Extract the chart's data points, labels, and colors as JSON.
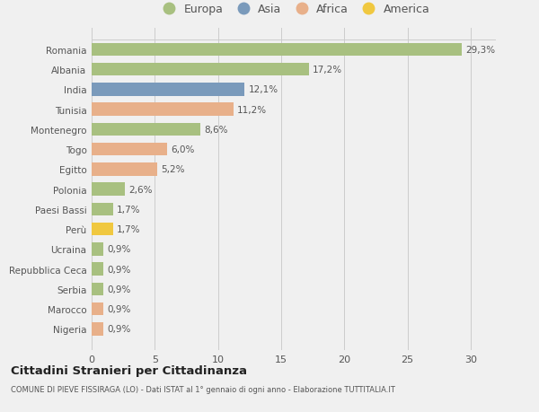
{
  "countries": [
    "Romania",
    "Albania",
    "India",
    "Tunisia",
    "Montenegro",
    "Togo",
    "Egitto",
    "Polonia",
    "Paesi Bassi",
    "Perù",
    "Ucraina",
    "Repubblica Ceca",
    "Serbia",
    "Marocco",
    "Nigeria"
  ],
  "values": [
    29.3,
    17.2,
    12.1,
    11.2,
    8.6,
    6.0,
    5.2,
    2.6,
    1.7,
    1.7,
    0.9,
    0.9,
    0.9,
    0.9,
    0.9
  ],
  "labels": [
    "29,3%",
    "17,2%",
    "12,1%",
    "11,2%",
    "8,6%",
    "6,0%",
    "5,2%",
    "2,6%",
    "1,7%",
    "1,7%",
    "0,9%",
    "0,9%",
    "0,9%",
    "0,9%",
    "0,9%"
  ],
  "colors": [
    "#a8c080",
    "#a8c080",
    "#7a9abb",
    "#e8b08a",
    "#a8c080",
    "#e8b08a",
    "#e8b08a",
    "#a8c080",
    "#a8c080",
    "#f0c840",
    "#a8c080",
    "#a8c080",
    "#a8c080",
    "#e8b08a",
    "#e8b08a"
  ],
  "legend_labels": [
    "Europa",
    "Asia",
    "Africa",
    "America"
  ],
  "legend_colors": [
    "#a8c080",
    "#7a9abb",
    "#e8b08a",
    "#f0c840"
  ],
  "title": "Cittadini Stranieri per Cittadinanza",
  "subtitle": "COMUNE DI PIEVE FISSIRAGA (LO) - Dati ISTAT al 1° gennaio di ogni anno - Elaborazione TUTTITALIA.IT",
  "xlim": [
    0,
    32
  ],
  "xticks": [
    0,
    5,
    10,
    15,
    20,
    25,
    30
  ],
  "bg_color": "#f0f0f0",
  "plot_bg_color": "#f0f0f0"
}
